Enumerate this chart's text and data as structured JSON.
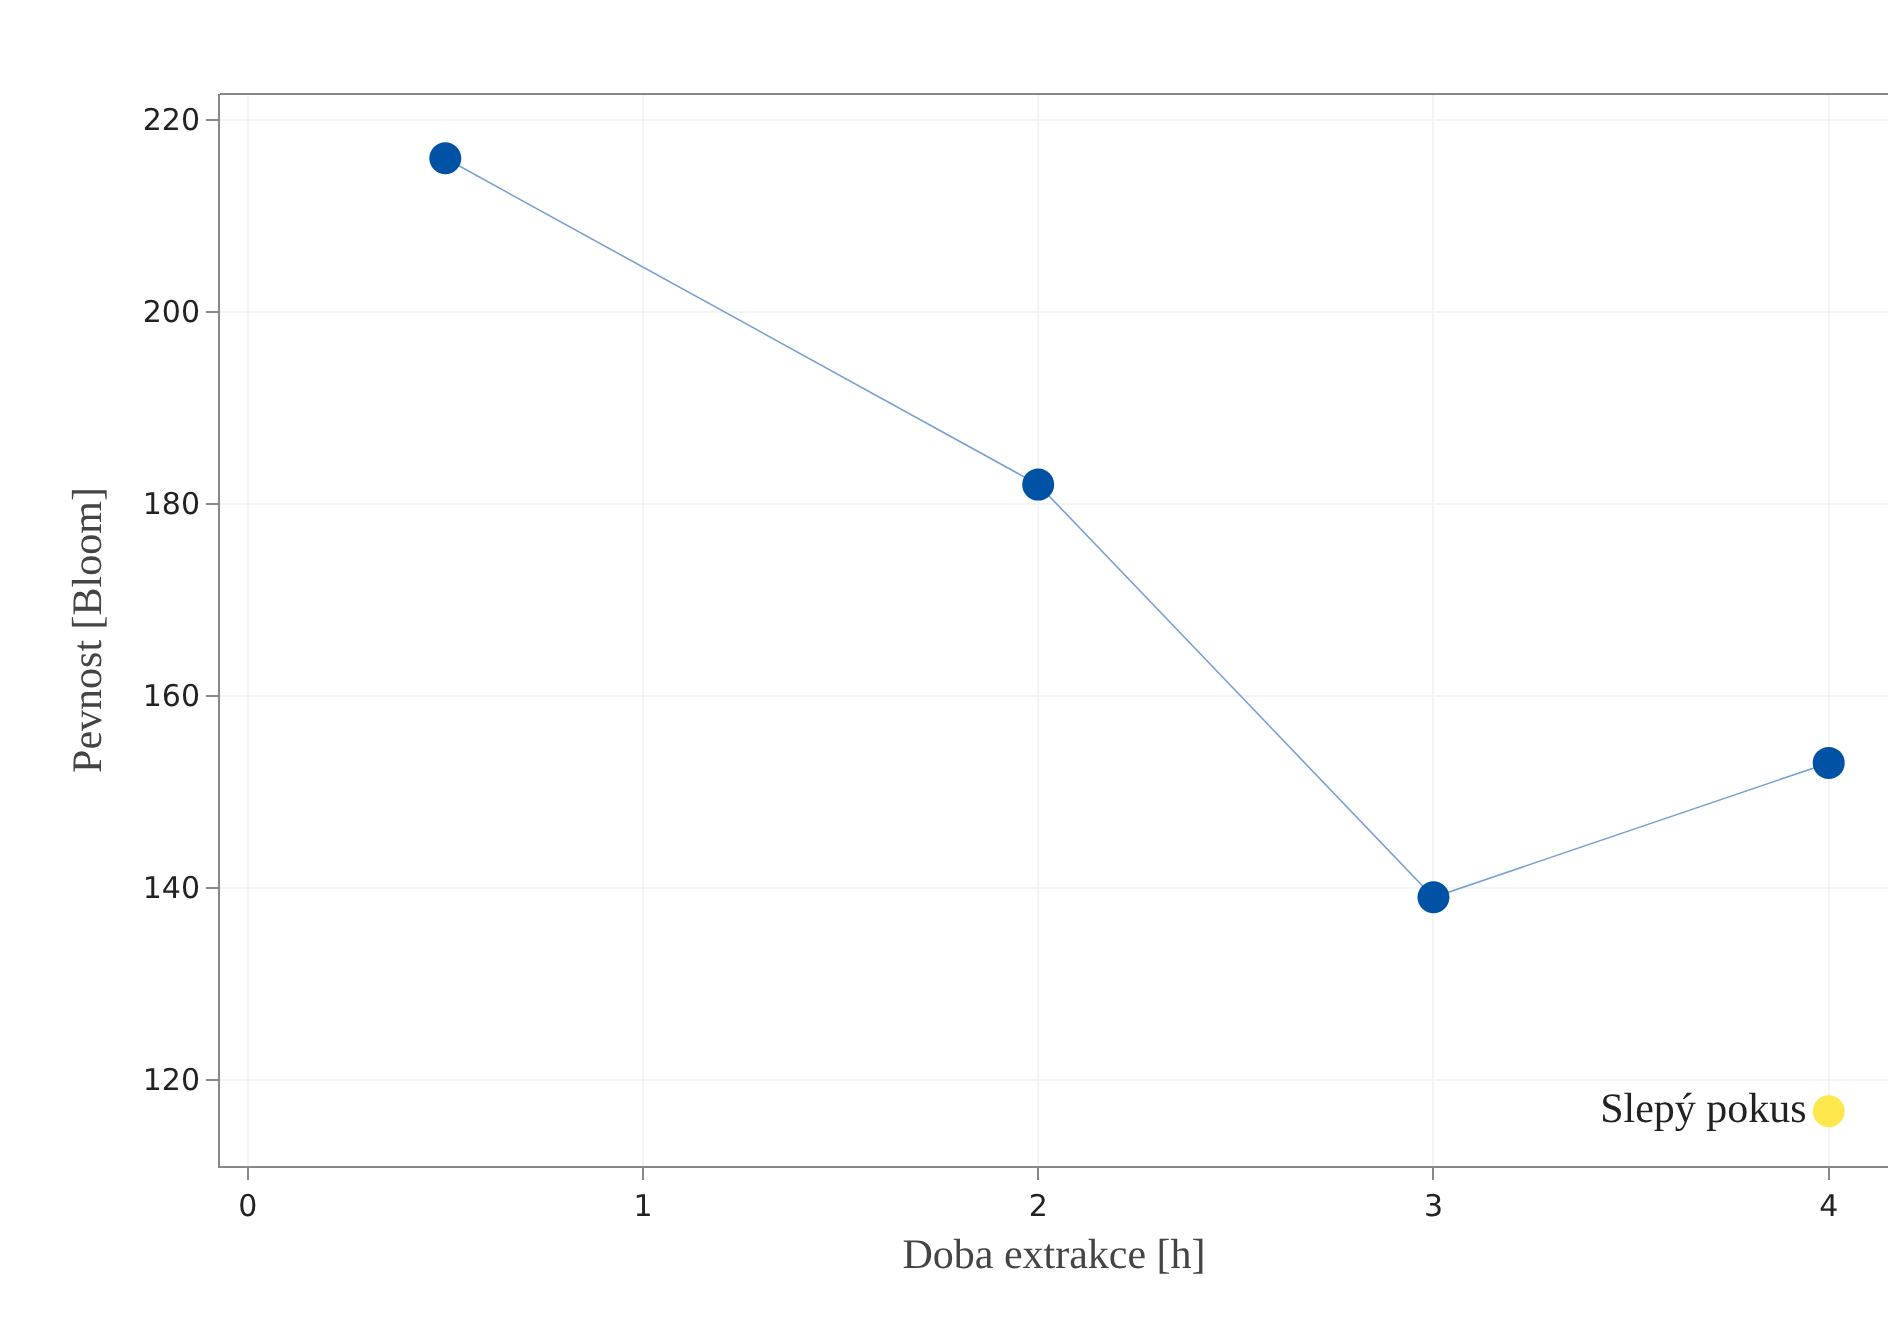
{
  "chart_data": {
    "type": "line",
    "xlabel": "Doba extrakce [h]",
    "ylabel": "Pevnost [Bloom]",
    "xlim": [
      -0.07,
      4.15
    ],
    "xticks": [
      0,
      1,
      2,
      3,
      4
    ],
    "ylim": [
      111,
      222.7
    ],
    "yticks": [
      120,
      140,
      160,
      180,
      200,
      220
    ],
    "grid": true,
    "legend": false,
    "marker": "circle",
    "line_style": "solid",
    "series": [
      {
        "x": [
          0.5,
          2,
          3,
          4
        ],
        "values": [
          216,
          182,
          139,
          153
        ],
        "color": "#0052a5"
      },
      {
        "type": "scatter",
        "name": "Slepý pokus",
        "x": [
          4
        ],
        "values": [
          116.7
        ],
        "color": "#fde74c"
      }
    ]
  }
}
